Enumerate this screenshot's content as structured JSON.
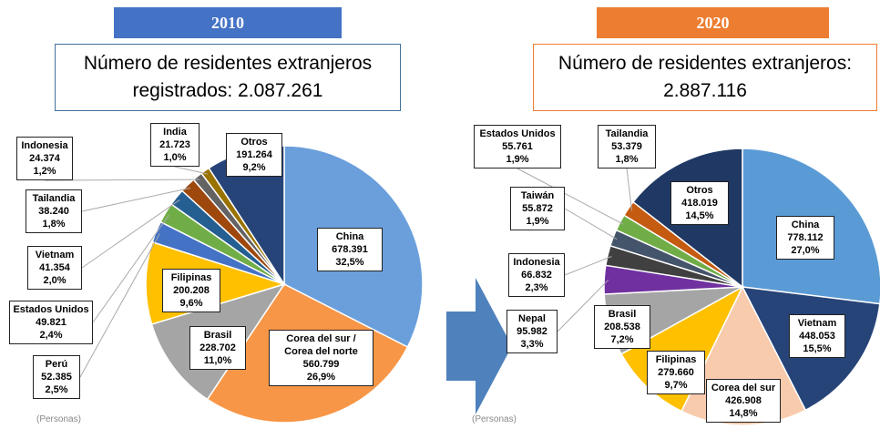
{
  "chart_data": [
    {
      "type": "pie",
      "title": "2010",
      "subtitle": "Número de residentes extranjeros registrados: 2.087.261",
      "note": "(Personas)",
      "categories": [
        "China",
        "Corea del sur / Corea del norte",
        "Brasil",
        "Filipinas",
        "Perú",
        "Estados Unidos",
        "Vietnam",
        "Tailandia",
        "Indonesia",
        "India",
        "Otros"
      ],
      "values": [
        678391,
        560799,
        228702,
        200208,
        52385,
        49821,
        41354,
        38240,
        24374,
        21723,
        191264
      ],
      "value_labels": [
        "678.391",
        "560.799",
        "228.702",
        "200.208",
        "52.385",
        "49.821",
        "41.354",
        "38.240",
        "24.374",
        "21.723",
        "191.264"
      ],
      "percents": [
        32.5,
        26.9,
        11.0,
        9.6,
        2.5,
        2.4,
        2.0,
        1.8,
        1.2,
        1.0,
        9.2
      ],
      "percent_labels": [
        "32,5%",
        "26,9%",
        "11,0%",
        "9,6%",
        "2,5%",
        "2,4%",
        "2,0%",
        "1,8%",
        "1,2%",
        "1,0%",
        "9,2%"
      ],
      "colors": [
        "#6a9fdc",
        "#f79646",
        "#a5a5a5",
        "#ffc000",
        "#4472c4",
        "#70ad47",
        "#255e91",
        "#9e480e",
        "#636363",
        "#997300",
        "#264478"
      ]
    },
    {
      "type": "pie",
      "title": "2020",
      "subtitle": "Número de residentes extranjeros: 2.887.116",
      "note": "(Personas)",
      "categories": [
        "China",
        "Vietnam",
        "Corea del sur",
        "Filipinas",
        "Brasil",
        "Nepal",
        "Indonesia",
        "Taiwán",
        "Estados Unidos",
        "Tailandia",
        "Otros"
      ],
      "values": [
        778112,
        448053,
        426908,
        279660,
        208538,
        95982,
        66832,
        55872,
        55761,
        53379,
        418019
      ],
      "value_labels": [
        "778.112",
        "448.053",
        "426.908",
        "279.660",
        "208.538",
        "95.982",
        "66.832",
        "55.872",
        "55.761",
        "53.379",
        "418.019"
      ],
      "percents": [
        27.0,
        15.5,
        14.8,
        9.7,
        7.2,
        3.3,
        2.3,
        1.9,
        1.9,
        1.8,
        14.5
      ],
      "percent_labels": [
        "27,0%",
        "15,5%",
        "14,8%",
        "9,7%",
        "7,2%",
        "3,3%",
        "2,3%",
        "1,9%",
        "1,9%",
        "1,8%",
        "14,5%"
      ],
      "colors": [
        "#5b9bd5",
        "#264478",
        "#f8cbad",
        "#ffc000",
        "#a5a5a5",
        "#7030a0",
        "#404040",
        "#44546a",
        "#70ad47",
        "#c55a11",
        "#1f3864"
      ]
    }
  ]
}
